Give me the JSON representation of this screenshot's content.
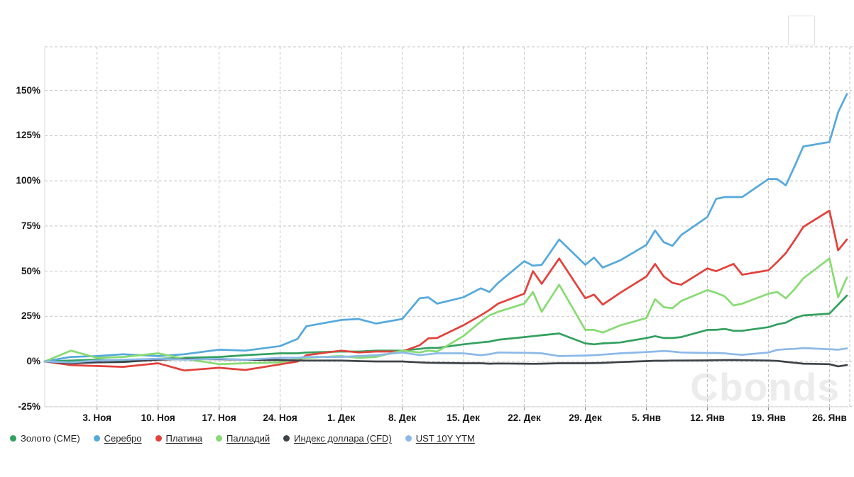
{
  "watermark": "Cbonds",
  "chart_data": {
    "type": "line",
    "title": "",
    "grid": true,
    "legend_position": "bottom",
    "y_axis": {
      "min": -25,
      "max": 174,
      "tick_step": 25,
      "tick_values": [
        -25,
        0,
        25,
        50,
        75,
        100,
        125,
        150
      ],
      "tick_labels": [
        "-25%",
        "0%",
        "25%",
        "50%",
        "75%",
        "100%",
        "125%",
        "150%"
      ]
    },
    "x_axis": {
      "tick_labels": [
        "3. Ноя",
        "10. Ноя",
        "17. Ноя",
        "24. Ноя",
        "1. Дек",
        "8. Дек",
        "15. Дек",
        "22. Дек",
        "29. Дек",
        "5. Янв",
        "12. Янв",
        "19. Янв",
        "26. Янв"
      ],
      "tick_day_offsets": [
        6,
        13,
        20,
        27,
        34,
        41,
        48,
        55,
        62,
        69,
        76,
        83,
        90
      ],
      "total_days": 92
    },
    "x": {
      "dates": [
        "28 Окт",
        "31 Окт",
        "3 Ноя",
        "6 Ноя",
        "10 Ноя",
        "13 Ноя",
        "17 Ноя",
        "20 Ноя",
        "24 Ноя",
        "26 Ноя",
        "27 Ноя",
        "1 Дек",
        "3 Дек",
        "5 Дек",
        "8 Дек",
        "10 Дек",
        "11 Дек",
        "12 Дек",
        "15 Дек",
        "17 Дек",
        "18 Дек",
        "19 Дек",
        "22 Дек",
        "23 Дек",
        "24 Дек",
        "26 Дек",
        "29 Дек",
        "30 Дек",
        "31 Дек",
        "2 Янв",
        "5 Янв",
        "6 Янв",
        "7 Янв",
        "8 Янв",
        "9 Янв",
        "12 Янв",
        "13 Янв",
        "14 Янв",
        "15 Янв",
        "16 Янв",
        "19 Янв",
        "20 Янв",
        "21 Янв",
        "22 Янв",
        "23 Янв",
        "26 Янв",
        "27 Янв",
        "28 Янв"
      ],
      "day_offsets": [
        0,
        3,
        6,
        9,
        13,
        16,
        20,
        23,
        27,
        29,
        30,
        34,
        36,
        38,
        41,
        43,
        44,
        45,
        48,
        50,
        51,
        52,
        55,
        56,
        57,
        59,
        62,
        63,
        64,
        66,
        69,
        70,
        71,
        72,
        73,
        76,
        77,
        78,
        79,
        80,
        83,
        84,
        85,
        86,
        87,
        90,
        91,
        92
      ]
    },
    "series": [
      {
        "id": "gold-cme",
        "name": "Золото (CME)",
        "color": "#32a05f",
        "underlined": false,
        "values": [
          0,
          0.5,
          1,
          0.5,
          1.5,
          2,
          2.5,
          3.5,
          4.5,
          4.5,
          5,
          5.5,
          5.5,
          6,
          6,
          7,
          7.5,
          7.5,
          9.5,
          10.5,
          11,
          12,
          13.5,
          14,
          14.5,
          15.5,
          10,
          9.5,
          10,
          10.5,
          13,
          14,
          13,
          13,
          13.5,
          17.5,
          17.5,
          18,
          17,
          17,
          19,
          20.5,
          21.5,
          24,
          25.5,
          26.5,
          31.5,
          36.5
        ]
      },
      {
        "id": "silver",
        "name": "Серебро",
        "color": "#55a9dc",
        "underlined": true,
        "values": [
          0,
          2.5,
          3,
          4,
          3,
          4,
          6.5,
          6,
          8.5,
          12.5,
          19.5,
          23,
          23.5,
          21,
          23.5,
          35,
          35.5,
          32,
          35.5,
          40.5,
          38.5,
          43.5,
          55.5,
          53,
          53.5,
          67.5,
          53.5,
          57.5,
          52,
          56,
          64.5,
          72.5,
          66,
          64,
          70,
          80,
          90,
          91,
          91,
          91,
          101,
          101,
          97.5,
          108,
          119,
          121.5,
          138,
          148
        ]
      },
      {
        "id": "platinum",
        "name": "Платина",
        "color": "#e2413b",
        "underlined": true,
        "values": [
          0,
          -2,
          -2.5,
          -3,
          -1,
          -5,
          -3.5,
          -4.7,
          -1.6,
          0,
          3.5,
          6,
          5,
          5.5,
          5.5,
          9,
          12.8,
          13,
          20,
          25.5,
          28.5,
          32,
          37.5,
          50,
          43,
          57,
          35,
          37,
          31.5,
          38,
          47,
          54,
          47,
          43.5,
          42.5,
          51.5,
          50,
          52,
          54,
          48,
          50.5,
          55,
          60,
          67,
          74.5,
          83.5,
          61.5,
          67.5
        ]
      },
      {
        "id": "palladium",
        "name": "Палладий",
        "color": "#87db72",
        "underlined": true,
        "values": [
          0,
          6,
          2,
          2.5,
          4.5,
          1.5,
          -1.5,
          -1,
          -0.5,
          1.5,
          2,
          3,
          2,
          2.5,
          6,
          5,
          6,
          5.5,
          14,
          22,
          25.5,
          27.5,
          32,
          38.5,
          27.5,
          42.5,
          17.5,
          17.5,
          16,
          20,
          24,
          34.5,
          30,
          29.5,
          33.5,
          39.5,
          38,
          36,
          31,
          32,
          37.5,
          38.5,
          35,
          40,
          46,
          57,
          35.5,
          46.5
        ]
      },
      {
        "id": "dollar-index-cfd",
        "name": "Индекс доллара (CFD)",
        "color": "#3d4348",
        "underlined": true,
        "values": [
          0,
          -1,
          -0.5,
          -0.3,
          1,
          1.3,
          1.2,
          1,
          0.8,
          0.5,
          0.5,
          0.5,
          0.2,
          0,
          0,
          -0.5,
          -0.7,
          -0.8,
          -1,
          -1,
          -1.2,
          -1.1,
          -1.2,
          -1.3,
          -1.2,
          -1,
          -1,
          -0.9,
          -0.8,
          -0.3,
          0.2,
          0.4,
          0.4,
          0.5,
          0.5,
          0.6,
          0.7,
          0.8,
          0.8,
          0.7,
          0.5,
          0.3,
          -0.2,
          -0.7,
          -1.2,
          -1.5,
          -2.7,
          -2
        ]
      },
      {
        "id": "ust-10y-ytm",
        "name": "UST 10Y YTM",
        "color": "#8cb9e8",
        "underlined": true,
        "values": [
          0,
          -0.5,
          0.5,
          1,
          1.5,
          1,
          1.5,
          1,
          2,
          2,
          2.5,
          2.5,
          3,
          3.5,
          5,
          3.5,
          4,
          4.5,
          4.5,
          3.5,
          4,
          5,
          4.8,
          4.7,
          4.5,
          3,
          3.3,
          3.5,
          3.8,
          4.5,
          5.2,
          5.5,
          5.8,
          5.5,
          5,
          4.7,
          4.7,
          4.5,
          4,
          3.7,
          5,
          6.4,
          6.8,
          7,
          7.4,
          6.8,
          6.5,
          7.2
        ]
      }
    ]
  }
}
